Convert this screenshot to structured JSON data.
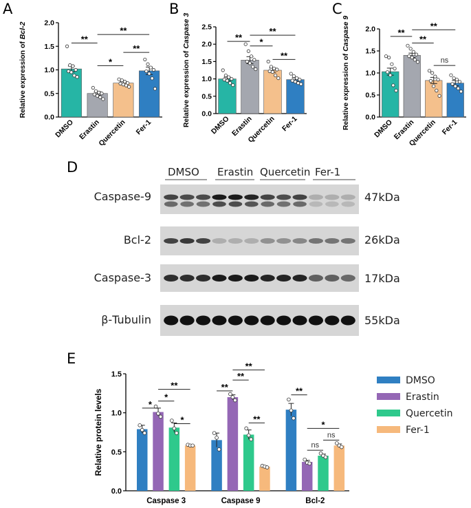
{
  "colors": {
    "dmso": "#26b5a5",
    "erastin": "#a4a7af",
    "quercetin": "#f4c08c",
    "fer1": "#2f7fc2",
    "e_dmso": "#2f7fc2",
    "e_erastin": "#9467b5",
    "e_quercetin": "#2ec98c",
    "e_fer1": "#f6b97c"
  },
  "panels": {
    "a_letter": "A",
    "b_letter": "B",
    "c_letter": "C",
    "d_letter": "D",
    "e_letter": "E"
  },
  "chart_data": [
    {
      "id": "A",
      "type": "bar",
      "ylabel_prefix": "Relative expression of ",
      "ylabel_gene": "Bcl-2",
      "categories": [
        "DMSO",
        "Erastin",
        "Quercetin",
        "Fer-1"
      ],
      "values": [
        1.02,
        0.5,
        0.72,
        0.98
      ],
      "errors": [
        0.06,
        0.04,
        0.03,
        0.08
      ],
      "points": [
        [
          1.5,
          1.1,
          1.08,
          1.0,
          0.97,
          0.95,
          0.88,
          0.85
        ],
        [
          0.62,
          0.55,
          0.52,
          0.5,
          0.48,
          0.45,
          0.42,
          0.38
        ],
        [
          0.8,
          0.78,
          0.75,
          0.72,
          0.71,
          0.69,
          0.67,
          0.64
        ],
        [
          1.22,
          1.12,
          1.05,
          1.0,
          0.97,
          0.92,
          0.82,
          0.6
        ]
      ],
      "ylim": [
        0,
        2.0
      ],
      "yticks": [
        "0.0",
        "0.5",
        "1.0",
        "1.5",
        "2.0"
      ],
      "significance": [
        {
          "from": 0,
          "to": 1,
          "label": "**",
          "level": 1.57
        },
        {
          "from": 1,
          "to": 3,
          "label": "**",
          "level": 1.75
        },
        {
          "from": 1,
          "to": 2,
          "label": "*",
          "level": 1.09
        },
        {
          "from": 2,
          "to": 3,
          "label": "**",
          "level": 1.37
        }
      ]
    },
    {
      "id": "B",
      "type": "bar",
      "ylabel_prefix": "Relative expression of ",
      "ylabel_gene": "Caspase 3",
      "categories": [
        "DMSO",
        "Erastin",
        "Quercetin",
        "Fer-1"
      ],
      "values": [
        1.0,
        1.54,
        1.25,
        0.98
      ],
      "errors": [
        0.05,
        0.1,
        0.06,
        0.05
      ],
      "points": [
        [
          1.25,
          1.1,
          1.05,
          1.0,
          0.98,
          0.95,
          0.88,
          0.82
        ],
        [
          2.0,
          1.8,
          1.65,
          1.55,
          1.5,
          1.45,
          1.35,
          1.28
        ],
        [
          1.5,
          1.35,
          1.3,
          1.27,
          1.22,
          1.2,
          1.1,
          1.02
        ],
        [
          1.15,
          1.08,
          1.02,
          0.98,
          0.95,
          0.92,
          0.88,
          0.85
        ]
      ],
      "ylim": [
        0,
        2.5
      ],
      "yticks": [
        "0.0",
        "0.5",
        "1.0",
        "1.5",
        "2.0",
        "2.5"
      ],
      "significance": [
        {
          "from": 0,
          "to": 1,
          "label": "**",
          "level": 2.08
        },
        {
          "from": 1,
          "to": 2,
          "label": "*",
          "level": 1.95
        },
        {
          "from": 1,
          "to": 3,
          "label": "**",
          "level": 2.26
        },
        {
          "from": 2,
          "to": 3,
          "label": "**",
          "level": 1.56
        }
      ]
    },
    {
      "id": "C",
      "type": "bar",
      "ylabel_prefix": "Relative expression of ",
      "ylabel_gene": "Caspase 9",
      "categories": [
        "DMSO",
        "Erastin",
        "Quercetin",
        "Fer-1"
      ],
      "values": [
        1.03,
        1.4,
        0.83,
        0.77
      ],
      "errors": [
        0.08,
        0.05,
        0.07,
        0.06
      ],
      "points": [
        [
          1.38,
          1.35,
          1.2,
          1.1,
          1.02,
          0.95,
          0.72,
          0.6
        ],
        [
          1.62,
          1.55,
          1.48,
          1.42,
          1.38,
          1.35,
          1.3,
          1.25
        ],
        [
          1.05,
          1.0,
          0.92,
          0.85,
          0.82,
          0.7,
          0.6,
          0.48
        ],
        [
          0.95,
          0.88,
          0.85,
          0.8,
          0.75,
          0.7,
          0.65,
          0.58
        ]
      ],
      "ylim": [
        0,
        2.0
      ],
      "yticks": [
        "0.0",
        "0.5",
        "1.0",
        "1.5",
        "2.0"
      ],
      "significance": [
        {
          "from": 0,
          "to": 1,
          "label": "**",
          "level": 1.83
        },
        {
          "from": 1,
          "to": 2,
          "label": "**",
          "level": 1.68
        },
        {
          "from": 1,
          "to": 3,
          "label": "**",
          "level": 1.98
        },
        {
          "from": 2,
          "to": 3,
          "label": "ns",
          "level": 1.17
        }
      ]
    },
    {
      "id": "E",
      "type": "grouped-bar",
      "ylabel": "Relative protein levels",
      "groups": [
        "Caspase 3",
        "Caspase 9",
        "Bcl-2"
      ],
      "series": [
        {
          "name": "DMSO",
          "values": [
            0.79,
            0.65,
            1.04
          ],
          "errors": [
            0.05,
            0.09,
            0.08
          ],
          "points": [
            [
              0.84,
              0.78,
              0.74
            ],
            [
              0.74,
              0.68,
              0.53
            ],
            [
              1.17,
              1.03,
              0.93
            ]
          ]
        },
        {
          "name": "Erastin",
          "values": [
            1.01,
            1.2,
            0.37
          ],
          "errors": [
            0.05,
            0.03,
            0.02
          ],
          "points": [
            [
              1.08,
              0.99,
              0.95
            ],
            [
              1.24,
              1.2,
              1.16
            ],
            [
              0.4,
              0.36,
              0.35
            ]
          ]
        },
        {
          "name": "Quercetin",
          "values": [
            0.81,
            0.72,
            0.45
          ],
          "errors": [
            0.06,
            0.06,
            0.02
          ],
          "points": [
            [
              0.9,
              0.8,
              0.74
            ],
            [
              0.8,
              0.71,
              0.66
            ],
            [
              0.48,
              0.45,
              0.43
            ]
          ]
        },
        {
          "name": "Fer-1",
          "values": [
            0.58,
            0.31,
            0.58
          ],
          "errors": [
            0.01,
            0.01,
            0.02
          ],
          "points": [
            [
              0.59,
              0.58,
              0.58
            ],
            [
              0.32,
              0.31,
              0.3
            ],
            [
              0.61,
              0.58,
              0.56
            ]
          ]
        }
      ],
      "ylim": [
        0,
        1.5
      ],
      "yticks": [
        "0.0",
        "0.5",
        "1.0",
        "1.5"
      ],
      "significance": [
        {
          "group": 0,
          "from": 0,
          "to": 1,
          "label": "*",
          "level": 1.06
        },
        {
          "group": 0,
          "from": 1,
          "to": 2,
          "label": "*",
          "level": 1.15
        },
        {
          "group": 0,
          "from": 1,
          "to": 3,
          "label": "**",
          "level": 1.3
        },
        {
          "group": 0,
          "from": 2,
          "to": 3,
          "label": "*",
          "level": 0.86
        },
        {
          "group": 1,
          "from": 0,
          "to": 1,
          "label": "**",
          "level": 1.28
        },
        {
          "group": 1,
          "from": 1,
          "to": 2,
          "label": "**",
          "level": 1.42
        },
        {
          "group": 1,
          "from": 1,
          "to": 3,
          "label": "**",
          "level": 1.55
        },
        {
          "group": 1,
          "from": 2,
          "to": 3,
          "label": "**",
          "level": 0.87
        },
        {
          "group": 2,
          "from": 0,
          "to": 1,
          "label": "**",
          "level": 1.23
        },
        {
          "group": 2,
          "from": 1,
          "to": 2,
          "label": "ns",
          "level": 0.52
        },
        {
          "group": 2,
          "from": 1,
          "to": 3,
          "label": "*",
          "level": 0.8
        },
        {
          "group": 2,
          "from": 2,
          "to": 3,
          "label": "ns",
          "level": 0.65
        }
      ],
      "legend": [
        "DMSO",
        "Erastin",
        "Quercetin",
        "Fer-1"
      ]
    }
  ],
  "western_blot": {
    "groups": [
      "DMSO",
      "Erastin",
      "Quercetin",
      "Fer-1"
    ],
    "lanes_per_group": 3,
    "rows": [
      {
        "protein": "Caspase-9",
        "kda": "47kDa",
        "lane_intensity": [
          0.75,
          0.7,
          0.7,
          0.95,
          0.95,
          0.9,
          0.75,
          0.7,
          0.75,
          0.2,
          0.2,
          0.2
        ],
        "double_band": true
      },
      {
        "protein": "Bcl-2",
        "kda": "26kDa",
        "lane_intensity": [
          0.75,
          0.8,
          0.75,
          0.2,
          0.2,
          0.2,
          0.35,
          0.35,
          0.4,
          0.5,
          0.5,
          0.5
        ],
        "double_band": false
      },
      {
        "protein": "Caspase-3",
        "kda": "17kDa",
        "lane_intensity": [
          0.85,
          0.85,
          0.85,
          0.95,
          0.95,
          0.95,
          0.9,
          0.9,
          0.9,
          0.6,
          0.6,
          0.55
        ],
        "double_band": false
      },
      {
        "protein": "β-Tubulin",
        "kda": "55kDa",
        "lane_intensity": [
          1,
          1,
          1,
          1,
          1,
          1,
          1,
          1,
          1,
          1,
          1,
          1
        ],
        "double_band": false
      }
    ]
  }
}
